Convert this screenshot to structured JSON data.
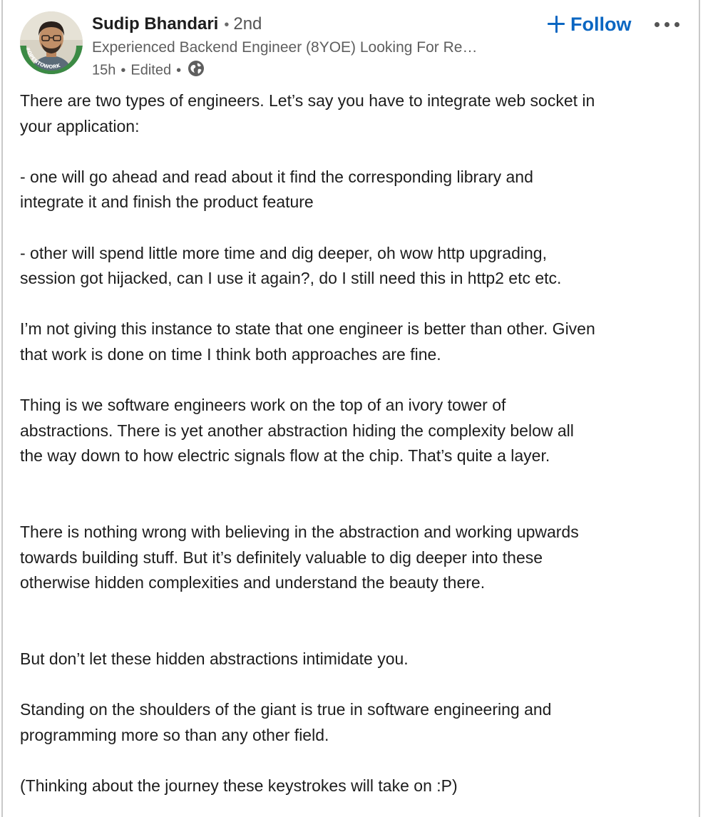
{
  "author": {
    "name": "Sudip Bhandari",
    "degree": "2nd",
    "headline": "Experienced Backend Engineer (8YOE) Looking For Re…",
    "time": "15h",
    "edited": "Edited",
    "avatar_badge": "#OPENTOWORK",
    "badge_color": "#3b8a44"
  },
  "actions": {
    "follow_label": "Follow",
    "accent_color": "#0a66c2",
    "more_icon": "ellipsis-icon",
    "visibility_icon": "globe-icon"
  },
  "post": {
    "p1_l1": "There are two types of engineers. Let’s say you have to integrate web socket in",
    "p1_l2": "your application:",
    "p2_l1": "- one will go ahead and read about it find the corresponding library and",
    "p2_l2": "integrate it and finish the product feature",
    "p3_l1": "- other will spend little more time and dig deeper, oh wow http upgrading,",
    "p3_l2": "session got hijacked, can I use it again?, do I still need this in http2 etc etc.",
    "p4_l1": "I’m not giving this instance to state that one engineer is better than other. Given",
    "p4_l2": "that work is done on time I think both approaches are fine.",
    "p5_l1": "Thing is we software engineers work on the top of an ivory tower of",
    "p5_l2": "abstractions. There is yet another abstraction hiding the complexity below all",
    "p5_l3": "the way down to how electric signals flow at the chip. That’s quite a layer.",
    "p6_l1": "There is nothing wrong with believing in the abstraction and working upwards",
    "p6_l2": "towards building stuff. But it’s definitely valuable to dig deeper into these",
    "p6_l3": "otherwise hidden complexities and understand the beauty there.",
    "p7_l1": "But don’t let these hidden abstractions intimidate you.",
    "p8_l1": "Standing on the shoulders of the giant is true in software engineering and",
    "p8_l2": "programming more so than any other field.",
    "p9_l1": "(Thinking about the journey these keystrokes will take on :P)"
  }
}
